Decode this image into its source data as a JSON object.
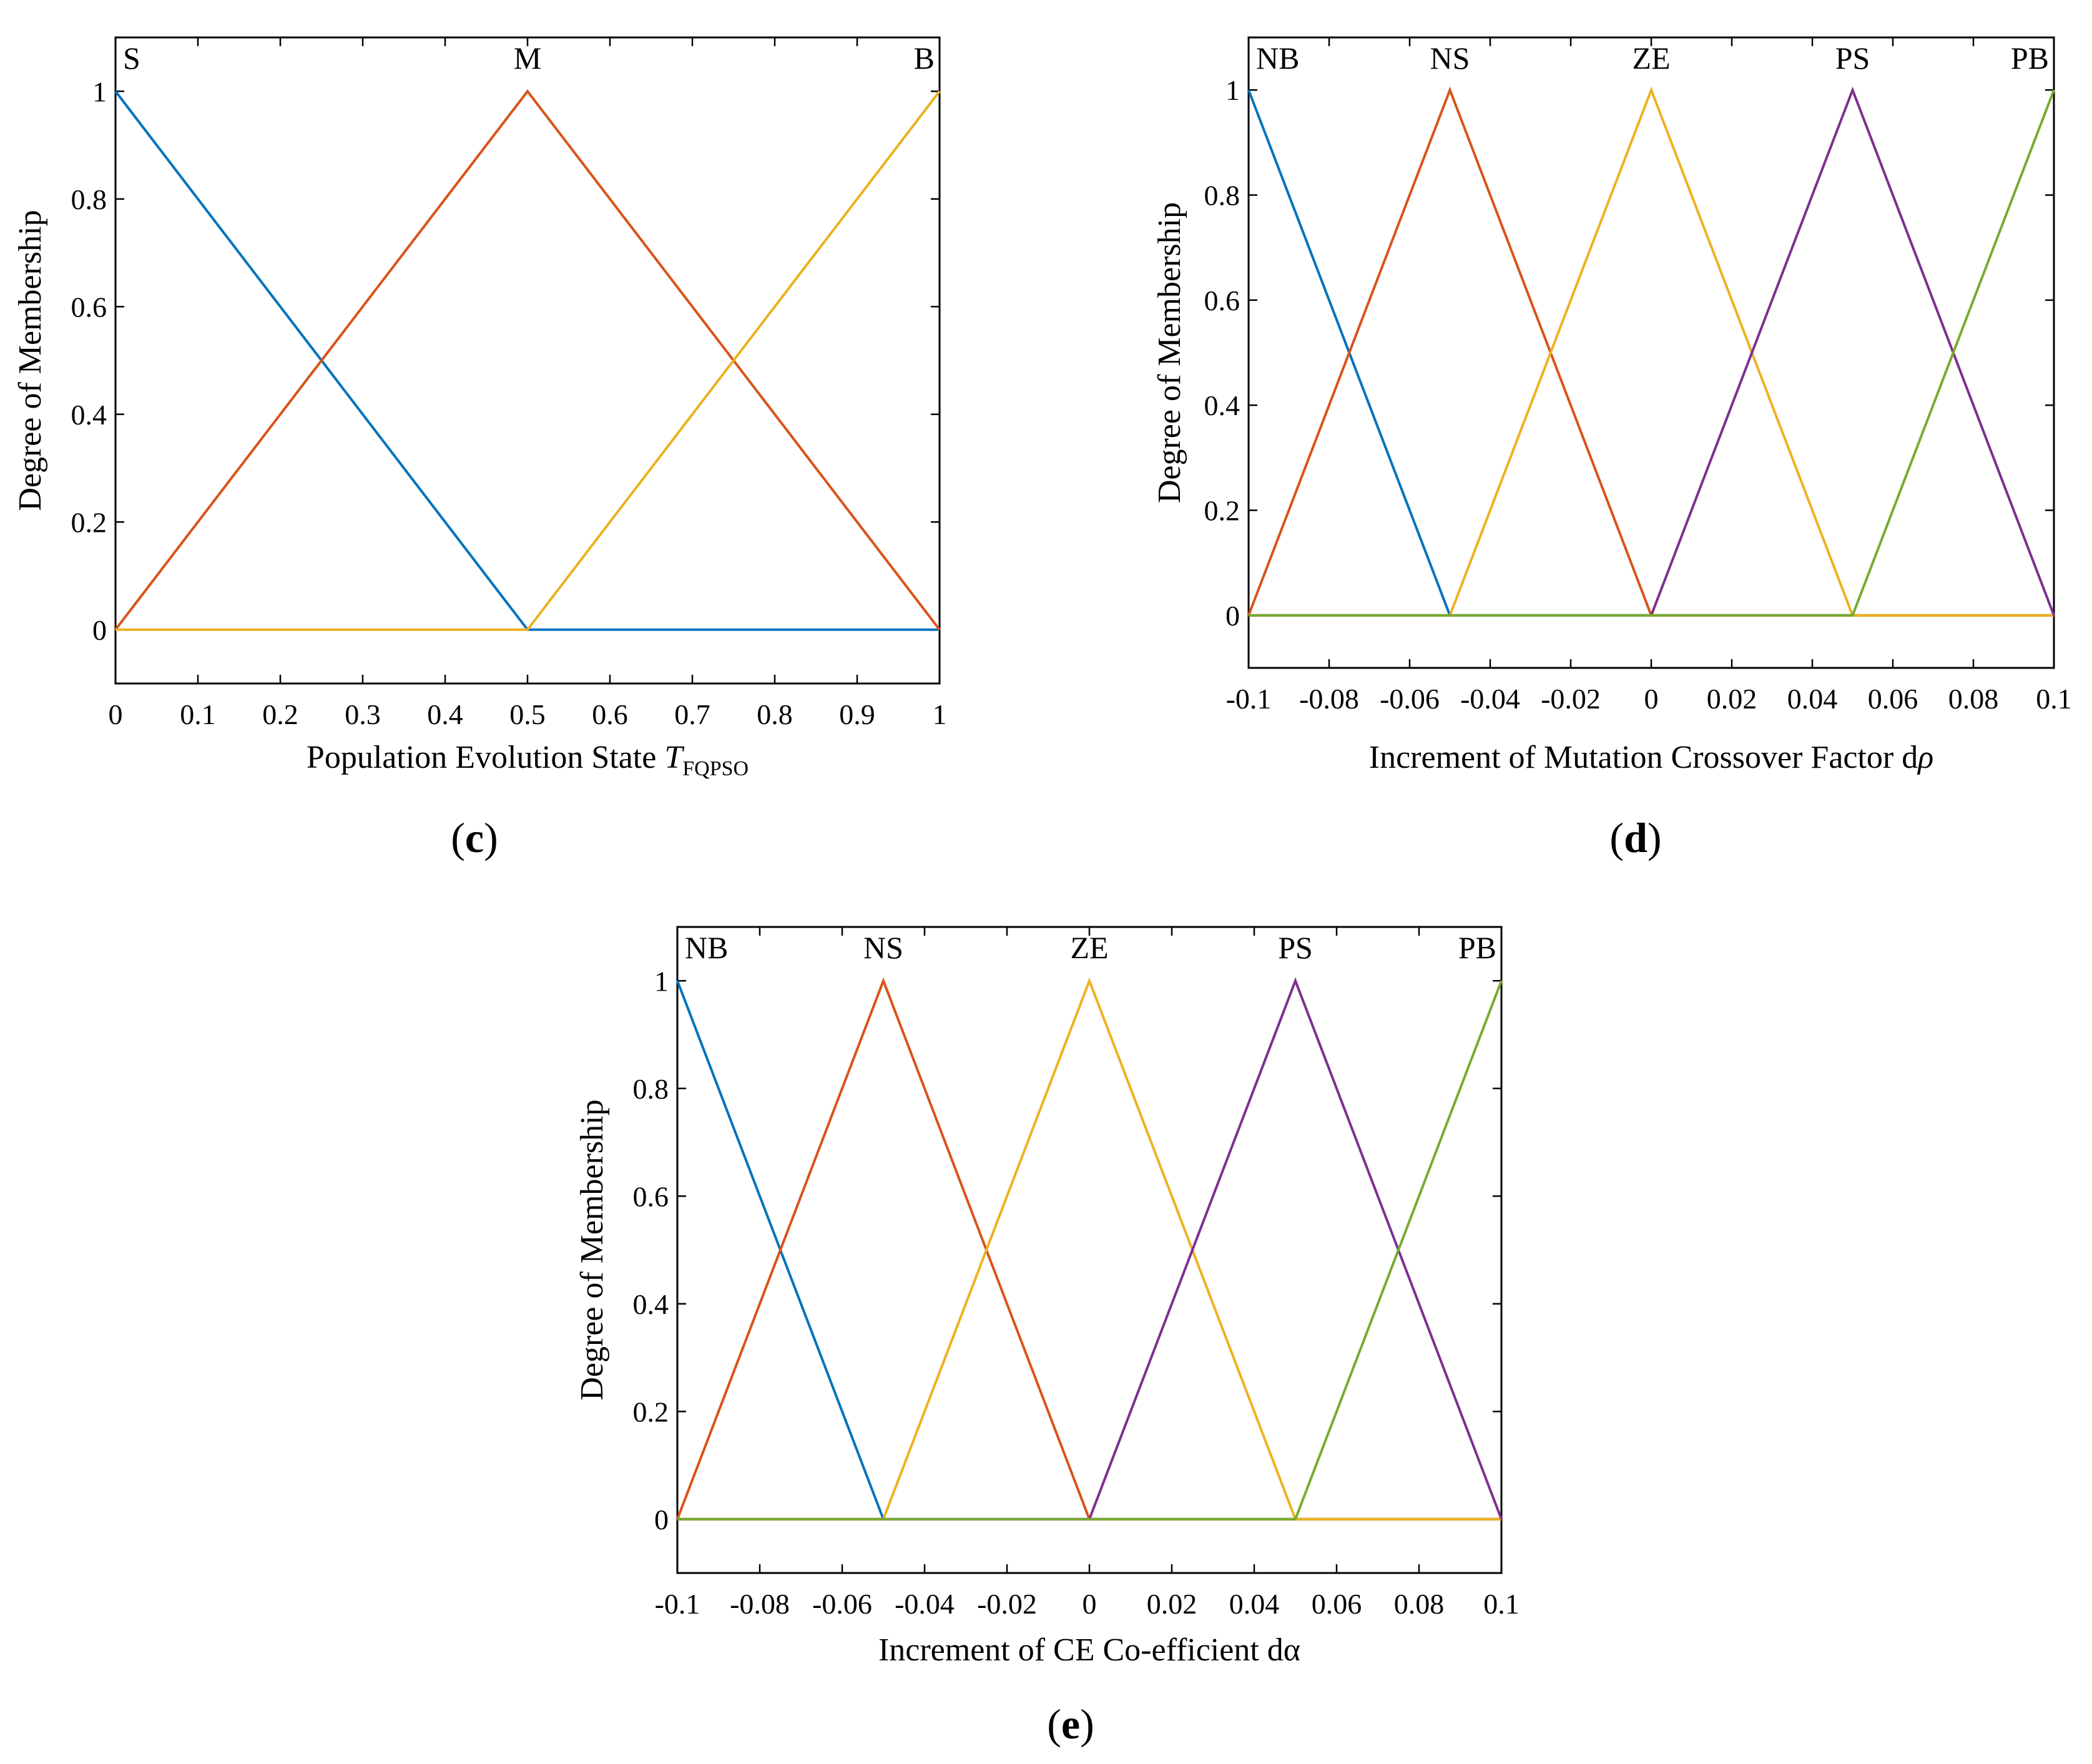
{
  "chart_data": [
    {
      "id": "c",
      "type": "line",
      "panel_label": "c",
      "xlabel": "Population Evolution State ",
      "xlabel_italic": "T",
      "xlabel_sub": "FQPSO",
      "ylabel": "Degree of Membership",
      "xlim": [
        0,
        1
      ],
      "ylim": [
        -0.1,
        1.1
      ],
      "xticks": [
        0,
        0.1,
        0.2,
        0.3,
        0.4,
        0.5,
        0.6,
        0.7,
        0.8,
        0.9,
        1
      ],
      "xtick_labels": [
        "0",
        "0.1",
        "0.2",
        "0.3",
        "0.4",
        "0.5",
        "0.6",
        "0.7",
        "0.8",
        "0.9",
        "1"
      ],
      "yticks": [
        0,
        0.2,
        0.4,
        0.6,
        0.8,
        1
      ],
      "ytick_labels": [
        "0",
        "0.2",
        "0.4",
        "0.6",
        "0.8",
        "1"
      ],
      "series": [
        {
          "name": "S",
          "color": "#0072BD",
          "x": [
            0,
            0.5,
            1
          ],
          "y": [
            1,
            0,
            0
          ],
          "label_x": 0,
          "label_anchor": "start"
        },
        {
          "name": "M",
          "color": "#D95319",
          "x": [
            0,
            0.5,
            1
          ],
          "y": [
            0,
            1,
            0
          ],
          "label_x": 0.5,
          "label_anchor": "middle"
        },
        {
          "name": "B",
          "color": "#EDB120",
          "x": [
            0,
            0.5,
            1
          ],
          "y": [
            0,
            0,
            1
          ],
          "label_x": 1,
          "label_anchor": "end"
        }
      ]
    },
    {
      "id": "d",
      "type": "line",
      "panel_label": "d",
      "xlabel": "Increment of Mutation Crossover Factor d",
      "xlabel_italic": "ρ",
      "xlabel_sub": "",
      "ylabel": "Degree of Membership",
      "xlim": [
        -0.1,
        0.1
      ],
      "ylim": [
        -0.1,
        1.1
      ],
      "xticks": [
        -0.1,
        -0.08,
        -0.06,
        -0.04,
        -0.02,
        0,
        0.02,
        0.04,
        0.06,
        0.08,
        0.1
      ],
      "xtick_labels": [
        "-0.1",
        "-0.08",
        "-0.06",
        "-0.04",
        "-0.02",
        "0",
        "0.02",
        "0.04",
        "0.06",
        "0.08",
        "0.1"
      ],
      "yticks": [
        0,
        0.2,
        0.4,
        0.6,
        0.8,
        1
      ],
      "ytick_labels": [
        "0",
        "0.2",
        "0.4",
        "0.6",
        "0.8",
        "1"
      ],
      "series": [
        {
          "name": "NB",
          "color": "#0072BD",
          "x": [
            -0.1,
            -0.05,
            0.1
          ],
          "y": [
            1,
            0,
            0
          ],
          "label_x": -0.1,
          "label_anchor": "start"
        },
        {
          "name": "NS",
          "color": "#D95319",
          "x": [
            -0.1,
            -0.05,
            0,
            0.1
          ],
          "y": [
            0,
            1,
            0,
            0
          ],
          "label_x": -0.05,
          "label_anchor": "middle"
        },
        {
          "name": "ZE",
          "color": "#EDB120",
          "x": [
            -0.1,
            -0.05,
            0,
            0.05,
            0.1
          ],
          "y": [
            0,
            0,
            1,
            0,
            0
          ],
          "label_x": 0,
          "label_anchor": "middle"
        },
        {
          "name": "PS",
          "color": "#7E2F8E",
          "x": [
            -0.1,
            0,
            0.05,
            0.1
          ],
          "y": [
            0,
            0,
            1,
            0
          ],
          "label_x": 0.05,
          "label_anchor": "middle"
        },
        {
          "name": "PB",
          "color": "#77AC30",
          "x": [
            -0.1,
            0.05,
            0.1
          ],
          "y": [
            0,
            0,
            1
          ],
          "label_x": 0.1,
          "label_anchor": "end"
        }
      ]
    },
    {
      "id": "e",
      "type": "line",
      "panel_label": "e",
      "xlabel": "Increment of CE Co-efficient dα",
      "xlabel_italic": "",
      "xlabel_sub": "",
      "ylabel": "Degree of Membership",
      "xlim": [
        -0.1,
        0.1
      ],
      "ylim": [
        -0.1,
        1.1
      ],
      "xticks": [
        -0.1,
        -0.08,
        -0.06,
        -0.04,
        -0.02,
        0,
        0.02,
        0.04,
        0.06,
        0.08,
        0.1
      ],
      "xtick_labels": [
        "-0.1",
        "-0.08",
        "-0.06",
        "-0.04",
        "-0.02",
        "0",
        "0.02",
        "0.04",
        "0.06",
        "0.08",
        "0.1"
      ],
      "yticks": [
        0,
        0.2,
        0.4,
        0.6,
        0.8,
        1
      ],
      "ytick_labels": [
        "0",
        "0.2",
        "0.4",
        "0.6",
        "0.8",
        "1"
      ],
      "series": [
        {
          "name": "NB",
          "color": "#0072BD",
          "x": [
            -0.1,
            -0.05,
            0.1
          ],
          "y": [
            1,
            0,
            0
          ],
          "label_x": -0.1,
          "label_anchor": "start"
        },
        {
          "name": "NS",
          "color": "#D95319",
          "x": [
            -0.1,
            -0.05,
            0,
            0.1
          ],
          "y": [
            0,
            1,
            0,
            0
          ],
          "label_x": -0.05,
          "label_anchor": "middle"
        },
        {
          "name": "ZE",
          "color": "#EDB120",
          "x": [
            -0.1,
            -0.05,
            0,
            0.05,
            0.1
          ],
          "y": [
            0,
            0,
            1,
            0,
            0
          ],
          "label_x": 0,
          "label_anchor": "middle"
        },
        {
          "name": "PS",
          "color": "#7E2F8E",
          "x": [
            -0.1,
            0,
            0.05,
            0.1
          ],
          "y": [
            0,
            0,
            1,
            0
          ],
          "label_x": 0.05,
          "label_anchor": "middle"
        },
        {
          "name": "PB",
          "color": "#77AC30",
          "x": [
            -0.1,
            0.05,
            0.1
          ],
          "y": [
            0,
            0,
            1
          ],
          "label_x": 0.1,
          "label_anchor": "end"
        }
      ]
    }
  ]
}
